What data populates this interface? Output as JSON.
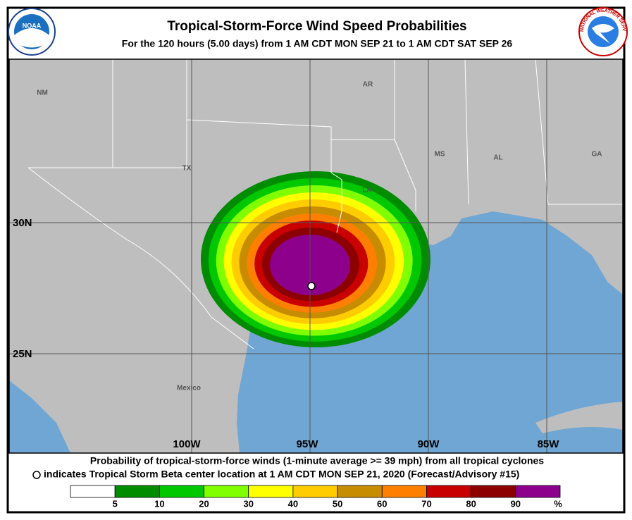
{
  "header": {
    "title": "Tropical-Storm-Force Wind Speed Probabilities",
    "subtitle": "For the 120 hours (5.00 days) from 1 AM CDT MON SEP 21 to 1 AM CDT SAT SEP 26",
    "noaa_logo": "NOAA",
    "nws_logo": "NATIONAL WEATHER SERVICE"
  },
  "map": {
    "state_labels": [
      "NM",
      "AR",
      "TX",
      "LA",
      "MS",
      "AL",
      "GA",
      "Mexico"
    ],
    "lat_labels": [
      "30N",
      "25N"
    ],
    "lon_labels": [
      "100W",
      "95W",
      "90W",
      "85W"
    ]
  },
  "footer": {
    "line1": "Probability of tropical-storm-force winds (1-minute average >= 39 mph) from all tropical cyclones",
    "line2": "indicates Tropical Storm Beta center location at 1 AM CDT MON SEP 21, 2020 (Forecast/Advisory #15)"
  },
  "legend": {
    "levels": [
      5,
      10,
      20,
      30,
      40,
      50,
      60,
      70,
      80,
      90
    ],
    "colors": [
      "#ffffff",
      "#008c00",
      "#00c800",
      "#80ff00",
      "#ffff00",
      "#ffcc00",
      "#c88c00",
      "#ff8000",
      "#c80000",
      "#8c0000",
      "#8c008c"
    ],
    "unit": "%"
  }
}
